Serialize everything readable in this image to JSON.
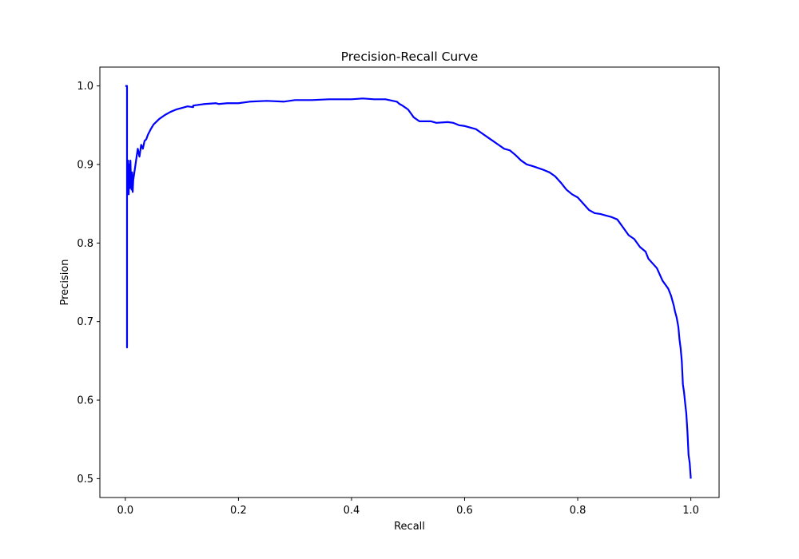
{
  "chart_data": {
    "type": "line",
    "title": "Precision-Recall Curve",
    "xlabel": "Recall",
    "ylabel": "Precision",
    "xlim": [
      -0.045,
      1.05
    ],
    "ylim": [
      0.476,
      1.024
    ],
    "xticks": [
      0.0,
      0.2,
      0.4,
      0.6,
      0.8,
      1.0
    ],
    "yticks": [
      0.5,
      0.6,
      0.7,
      0.8,
      0.9,
      1.0
    ],
    "xtick_labels": [
      "0.0",
      "0.2",
      "0.4",
      "0.6",
      "0.8",
      "1.0"
    ],
    "ytick_labels": [
      "0.5",
      "0.6",
      "0.7",
      "0.8",
      "0.9",
      "1.0"
    ],
    "grid": false,
    "line_color": "#0000ff",
    "series": [
      {
        "x": [
          0.0,
          0.003,
          0.003,
          0.003,
          0.004,
          0.005,
          0.006,
          0.007,
          0.008,
          0.009,
          0.01,
          0.011,
          0.012,
          0.013,
          0.014,
          0.016,
          0.018,
          0.02,
          0.022,
          0.025,
          0.028,
          0.031,
          0.034,
          0.037,
          0.04,
          0.045,
          0.05,
          0.06,
          0.07,
          0.08,
          0.09,
          0.1,
          0.11,
          0.12,
          0.12,
          0.14,
          0.16,
          0.165,
          0.18,
          0.2,
          0.22,
          0.25,
          0.28,
          0.3,
          0.33,
          0.36,
          0.4,
          0.42,
          0.44,
          0.46,
          0.48,
          0.485,
          0.49,
          0.5,
          0.505,
          0.51,
          0.52,
          0.54,
          0.55,
          0.57,
          0.58,
          0.59,
          0.6,
          0.62,
          0.63,
          0.64,
          0.65,
          0.66,
          0.67,
          0.68,
          0.69,
          0.7,
          0.71,
          0.72,
          0.74,
          0.75,
          0.76,
          0.77,
          0.78,
          0.79,
          0.8,
          0.81,
          0.82,
          0.83,
          0.84,
          0.85,
          0.86,
          0.87,
          0.88,
          0.89,
          0.9,
          0.91,
          0.92,
          0.925,
          0.93,
          0.94,
          0.95,
          0.955,
          0.96,
          0.965,
          0.97,
          0.972,
          0.975,
          0.978,
          0.98,
          0.982,
          0.984,
          0.986,
          0.988,
          0.99,
          0.992,
          0.994,
          0.996,
          0.998,
          1.0
        ],
        "y": [
          1.0,
          1.0,
          0.667,
          0.87,
          0.88,
          0.905,
          0.862,
          0.9,
          0.87,
          0.905,
          0.88,
          0.868,
          0.89,
          0.865,
          0.88,
          0.89,
          0.9,
          0.91,
          0.92,
          0.91,
          0.925,
          0.92,
          0.93,
          0.932,
          0.938,
          0.945,
          0.951,
          0.958,
          0.963,
          0.967,
          0.97,
          0.972,
          0.974,
          0.973,
          0.975,
          0.977,
          0.978,
          0.977,
          0.978,
          0.978,
          0.98,
          0.981,
          0.98,
          0.982,
          0.982,
          0.983,
          0.983,
          0.984,
          0.983,
          0.983,
          0.98,
          0.977,
          0.975,
          0.97,
          0.965,
          0.96,
          0.955,
          0.955,
          0.953,
          0.954,
          0.953,
          0.95,
          0.949,
          0.945,
          0.94,
          0.935,
          0.93,
          0.925,
          0.92,
          0.918,
          0.912,
          0.905,
          0.9,
          0.898,
          0.893,
          0.89,
          0.885,
          0.877,
          0.868,
          0.862,
          0.858,
          0.85,
          0.842,
          0.838,
          0.837,
          0.835,
          0.833,
          0.83,
          0.82,
          0.81,
          0.805,
          0.795,
          0.789,
          0.78,
          0.776,
          0.768,
          0.752,
          0.747,
          0.742,
          0.733,
          0.72,
          0.713,
          0.705,
          0.693,
          0.677,
          0.666,
          0.65,
          0.62,
          0.61,
          0.596,
          0.583,
          0.56,
          0.53,
          0.52,
          0.5
        ]
      }
    ]
  }
}
